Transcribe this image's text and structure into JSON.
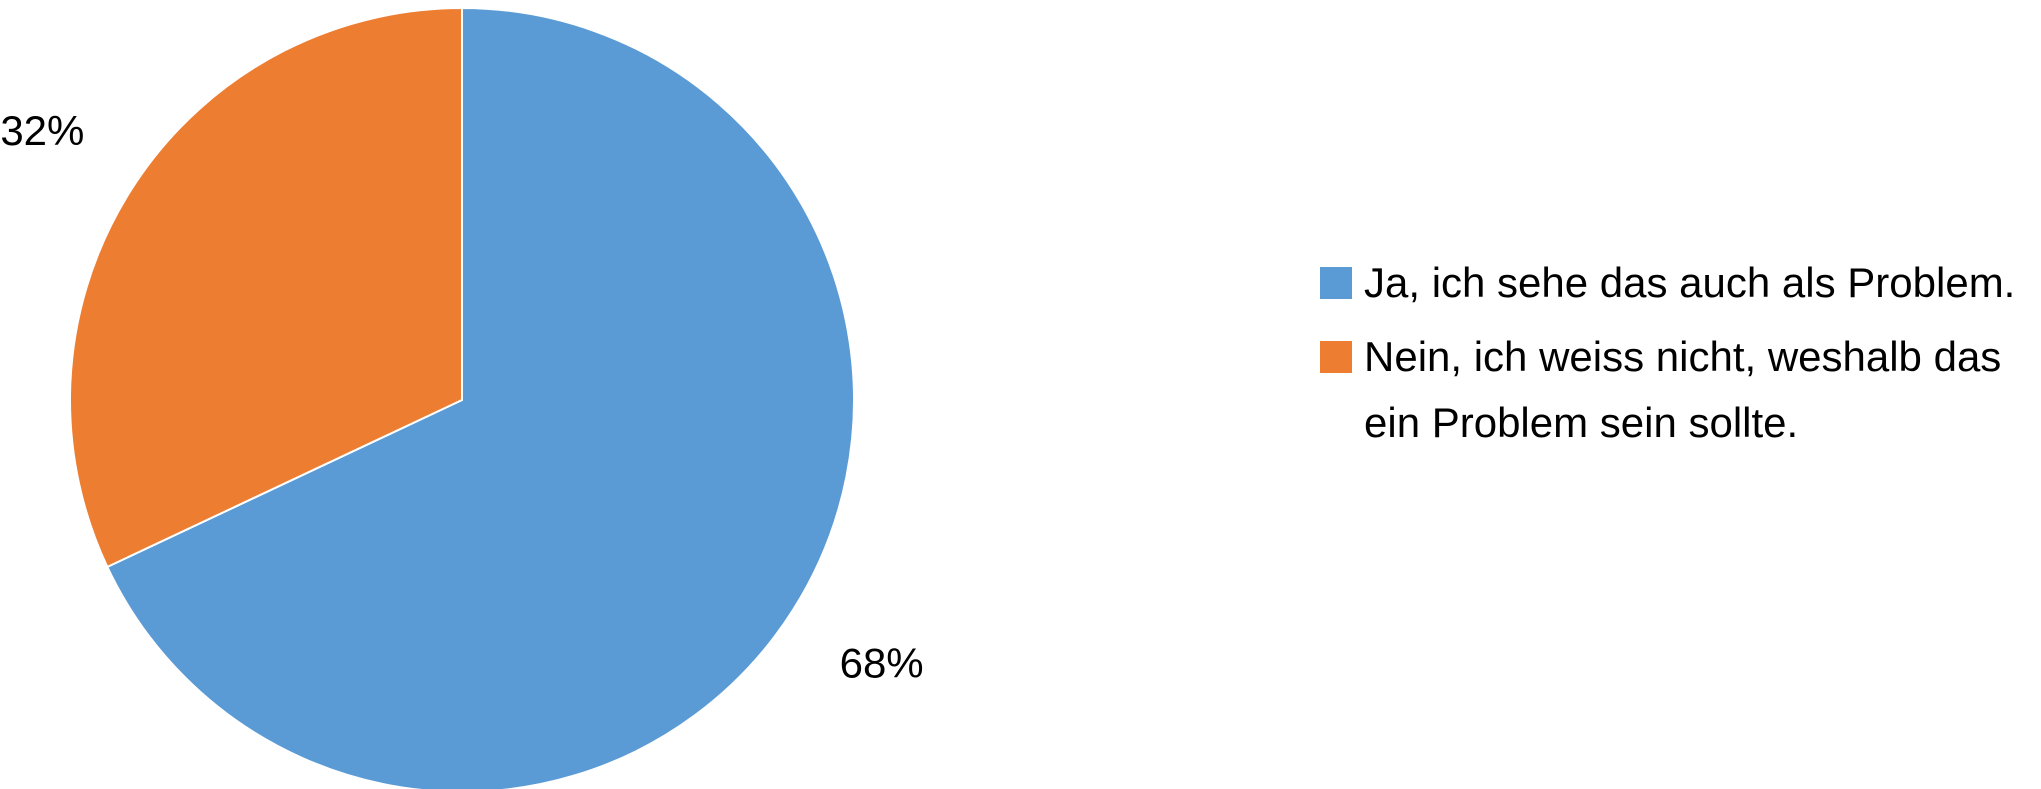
{
  "chart_data": {
    "type": "pie",
    "title": "",
    "slices": [
      {
        "label": "Ja, ich sehe das auch als Problem.",
        "value": 68,
        "data_label": "68%",
        "color": "#5B9BD5"
      },
      {
        "label": "Nein, ich weiss nicht, weshalb das ein Problem sein sollte.",
        "value": 32,
        "data_label": "32%",
        "color": "#ED7D31"
      }
    ],
    "start_angle_deg": 0,
    "direction": "clockwise",
    "legend_position": "right"
  }
}
